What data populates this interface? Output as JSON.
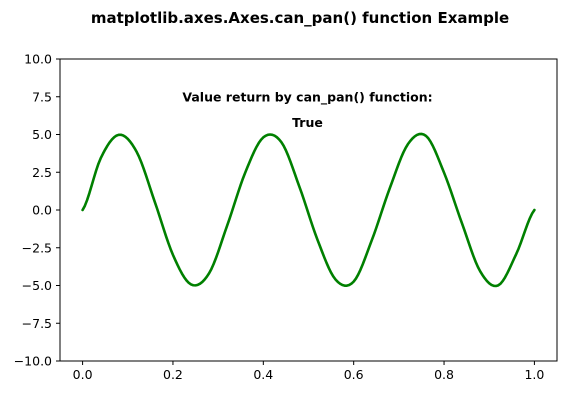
{
  "chart_data": {
    "type": "line",
    "title": "matplotlib.axes.Axes.can_pan() function Example",
    "xlabel": "",
    "ylabel": "",
    "xlim": [
      -0.05,
      1.05
    ],
    "ylim": [
      -10.0,
      10.0
    ],
    "grid": false,
    "legend": "none",
    "x_ticks": [
      0.0,
      0.2,
      0.4,
      0.6,
      0.8,
      1.0
    ],
    "x_tick_labels": [
      "0.0",
      "0.2",
      "0.4",
      "0.6",
      "0.8",
      "1.0"
    ],
    "y_ticks": [
      10.0,
      7.5,
      5.0,
      2.5,
      0.0,
      -2.5,
      -5.0,
      -7.5,
      -10.0
    ],
    "y_tick_labels": [
      "10.0",
      "7.5",
      "5.0",
      "2.5",
      "0.0",
      "−2.5",
      "−5.0",
      "−7.5",
      "−10.0"
    ],
    "series": [
      {
        "color": "#008000",
        "x": [
          0.0,
          0.04,
          0.08,
          0.12,
          0.16,
          0.2,
          0.24,
          0.28,
          0.32,
          0.36,
          0.4,
          0.44,
          0.48,
          0.52,
          0.56,
          0.6,
          0.64,
          0.68,
          0.72,
          0.76,
          0.8,
          0.84,
          0.88,
          0.92,
          0.96,
          1.0
        ],
        "y": [
          0.0,
          3.42,
          4.98,
          3.83,
          0.52,
          -2.97,
          -4.93,
          -4.19,
          -1.03,
          2.48,
          4.81,
          4.49,
          1.53,
          -1.98,
          -4.61,
          -4.74,
          -2.01,
          1.45,
          4.36,
          4.91,
          2.47,
          -0.91,
          -4.06,
          -4.99,
          -2.9,
          -0.0
        ]
      }
    ],
    "annotations": [
      {
        "text": "Value return by can_pan() function:",
        "x": 0.5,
        "y": 7.5
      },
      {
        "text": "True",
        "x": 0.5,
        "y": 5.8
      }
    ]
  }
}
